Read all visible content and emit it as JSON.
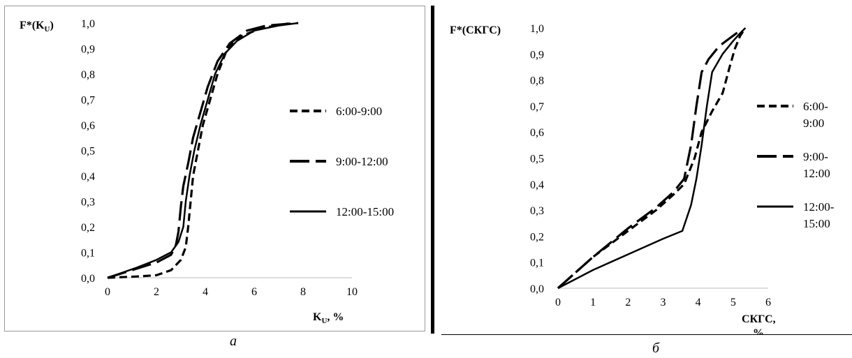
{
  "captions": {
    "left": "а",
    "right": "б"
  },
  "chart_data": [
    {
      "type": "line",
      "ylabel_main": "F*(K",
      "ylabel_sub": "U",
      "ylabel_tail": ")",
      "xlabel_main": "K",
      "xlabel_sub": "U",
      "xlabel_tail": ", %",
      "xlim": [
        0,
        10
      ],
      "ylim": [
        0,
        1
      ],
      "xticks": [
        "0",
        "2",
        "4",
        "6",
        "8",
        "10"
      ],
      "yticks": [
        "0,0",
        "0,1",
        "0,2",
        "0,3",
        "0,4",
        "0,5",
        "0,6",
        "0,7",
        "0,8",
        "0,9",
        "1,0"
      ],
      "legend_position": "right",
      "series": [
        {
          "name": "6:00-9:00",
          "style": "dash",
          "points": [
            [
              0.0,
              0.0
            ],
            [
              1.2,
              0.005
            ],
            [
              2.0,
              0.01
            ],
            [
              2.6,
              0.03
            ],
            [
              3.0,
              0.07
            ],
            [
              3.2,
              0.12
            ],
            [
              3.3,
              0.2
            ],
            [
              3.4,
              0.3
            ],
            [
              3.5,
              0.4
            ],
            [
              3.7,
              0.5
            ],
            [
              3.9,
              0.6
            ],
            [
              4.2,
              0.7
            ],
            [
              4.5,
              0.8
            ],
            [
              4.9,
              0.9
            ],
            [
              5.5,
              0.95
            ],
            [
              6.3,
              0.98
            ],
            [
              7.5,
              1.0
            ]
          ]
        },
        {
          "name": "9:00-12:00",
          "style": "longdash",
          "points": [
            [
              0.0,
              0.0
            ],
            [
              1.0,
              0.03
            ],
            [
              2.0,
              0.06
            ],
            [
              2.6,
              0.09
            ],
            [
              2.8,
              0.13
            ],
            [
              2.9,
              0.18
            ],
            [
              3.0,
              0.28
            ],
            [
              3.1,
              0.36
            ],
            [
              3.3,
              0.45
            ],
            [
              3.5,
              0.55
            ],
            [
              3.8,
              0.65
            ],
            [
              4.1,
              0.75
            ],
            [
              4.5,
              0.85
            ],
            [
              5.0,
              0.92
            ],
            [
              5.7,
              0.97
            ],
            [
              6.5,
              0.99
            ],
            [
              7.8,
              1.0
            ]
          ]
        },
        {
          "name": "12:00-15:00",
          "style": "solid",
          "points": [
            [
              0.0,
              0.0
            ],
            [
              1.2,
              0.04
            ],
            [
              2.0,
              0.07
            ],
            [
              2.6,
              0.1
            ],
            [
              2.9,
              0.14
            ],
            [
              3.1,
              0.2
            ],
            [
              3.2,
              0.3
            ],
            [
              3.35,
              0.4
            ],
            [
              3.55,
              0.5
            ],
            [
              3.8,
              0.6
            ],
            [
              4.1,
              0.7
            ],
            [
              4.4,
              0.8
            ],
            [
              4.8,
              0.88
            ],
            [
              5.3,
              0.93
            ],
            [
              6.0,
              0.97
            ],
            [
              7.0,
              0.99
            ],
            [
              7.8,
              1.0
            ]
          ]
        }
      ]
    },
    {
      "type": "line",
      "ylabel_main": "F*(СКГС)",
      "xlabel_main": "СКГС,",
      "xlabel_tail": "%",
      "xlim": [
        0,
        6
      ],
      "ylim": [
        0,
        1
      ],
      "xticks": [
        "0",
        "1",
        "2",
        "3",
        "4",
        "5",
        "6"
      ],
      "yticks": [
        "0,0",
        "0,1",
        "0,2",
        "0,3",
        "0,4",
        "0,5",
        "0,6",
        "0,7",
        "0,8",
        "0,9",
        "1,0"
      ],
      "legend_position": "right",
      "series": [
        {
          "name": "6:00-9:00",
          "name_lines": [
            "6:00-",
            "9:00"
          ],
          "style": "dash",
          "points": [
            [
              0.0,
              0.0
            ],
            [
              0.5,
              0.06
            ],
            [
              1.0,
              0.12
            ],
            [
              2.0,
              0.22
            ],
            [
              2.8,
              0.3
            ],
            [
              3.3,
              0.36
            ],
            [
              3.6,
              0.4
            ],
            [
              3.9,
              0.5
            ],
            [
              4.1,
              0.6
            ],
            [
              4.4,
              0.68
            ],
            [
              4.7,
              0.75
            ],
            [
              4.9,
              0.85
            ],
            [
              5.05,
              0.92
            ],
            [
              5.2,
              0.97
            ],
            [
              5.3,
              0.99
            ]
          ]
        },
        {
          "name": "9:00-12:00",
          "name_lines": [
            "9:00-",
            "12:00"
          ],
          "style": "longdash",
          "points": [
            [
              0.0,
              0.0
            ],
            [
              0.5,
              0.06
            ],
            [
              1.0,
              0.12
            ],
            [
              2.0,
              0.23
            ],
            [
              2.8,
              0.31
            ],
            [
              3.3,
              0.37
            ],
            [
              3.6,
              0.42
            ],
            [
              3.8,
              0.55
            ],
            [
              3.95,
              0.7
            ],
            [
              4.1,
              0.83
            ],
            [
              4.3,
              0.88
            ],
            [
              4.6,
              0.93
            ],
            [
              4.9,
              0.96
            ],
            [
              5.2,
              0.99
            ]
          ]
        },
        {
          "name": "12:00-15:00",
          "name_lines": [
            "12:00-",
            "15:00"
          ],
          "style": "solid",
          "points": [
            [
              0.0,
              0.0
            ],
            [
              1.0,
              0.07
            ],
            [
              2.0,
              0.13
            ],
            [
              3.0,
              0.19
            ],
            [
              3.55,
              0.22
            ],
            [
              3.8,
              0.32
            ],
            [
              3.95,
              0.42
            ],
            [
              4.1,
              0.55
            ],
            [
              4.25,
              0.7
            ],
            [
              4.4,
              0.83
            ],
            [
              4.7,
              0.9
            ],
            [
              5.0,
              0.95
            ],
            [
              5.2,
              0.98
            ],
            [
              5.35,
              1.0
            ]
          ]
        }
      ]
    }
  ]
}
